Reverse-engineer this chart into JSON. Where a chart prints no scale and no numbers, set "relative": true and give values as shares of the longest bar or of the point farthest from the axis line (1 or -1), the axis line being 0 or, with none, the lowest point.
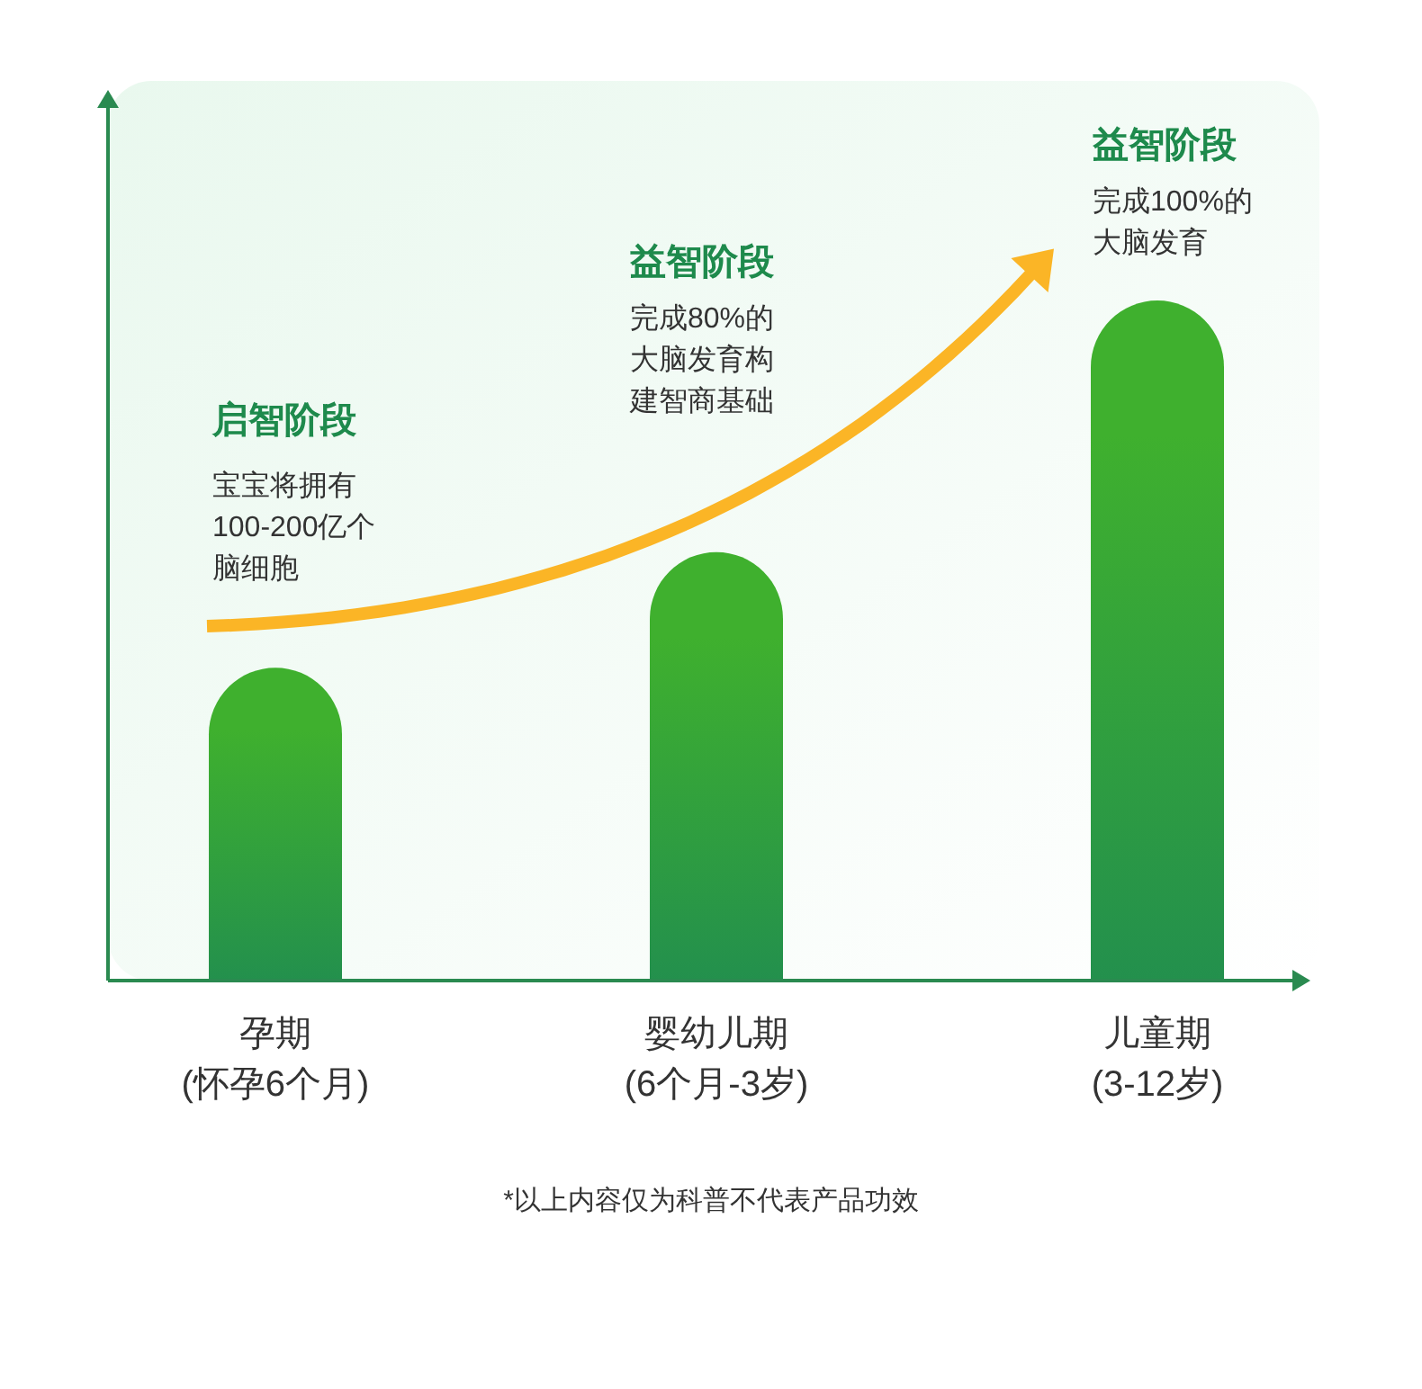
{
  "chart_data": {
    "type": "bar",
    "relative": true,
    "categories": [
      "孕期\n(怀孕6个月)",
      "婴幼儿期\n(6个月-3岁)",
      "儿童期\n(3-12岁)"
    ],
    "values": [
      0.46,
      0.63,
      1
    ],
    "color": "#3fb02e",
    "annotations": [
      "启智阶段",
      "宝宝将拥有",
      "100-200亿个",
      "脑细胞",
      "益智阶段",
      "完成80%的",
      "大脑发育构",
      "建智商基础",
      "益智阶段",
      "完成100%的",
      "大脑发育",
      "*以上内容仅为科普不代表产品功效"
    ]
  }
}
